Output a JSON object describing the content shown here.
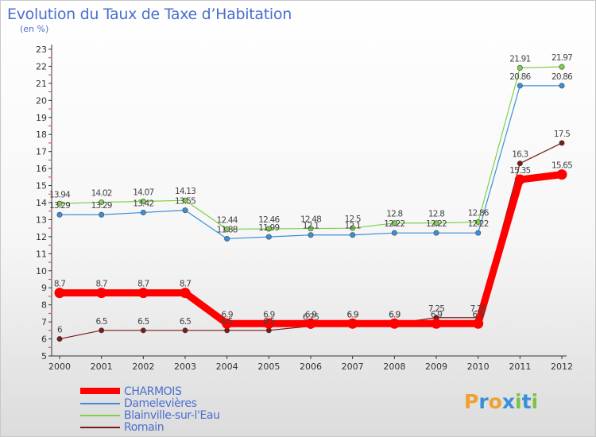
{
  "header": {
    "title": "Evolution du Taux de Taxe d’Habitation",
    "unit": "(en %)"
  },
  "logo": {
    "letters": [
      "P",
      "r",
      "o",
      "x",
      "i",
      "t",
      "i"
    ],
    "colors": [
      "#f0a030",
      "#3a8fd8",
      "#f0a030",
      "#3a8fd8",
      "#7cc242",
      "#3a8fd8",
      "#7cc242"
    ]
  },
  "chart_data": {
    "type": "line",
    "title": "Evolution du Taux de Taxe d’Habitation",
    "ylabel": "(en %)",
    "xlabel": "",
    "x": [
      "2000",
      "2001",
      "2002",
      "2003",
      "2004",
      "2005",
      "2006",
      "2007",
      "2008",
      "2009",
      "2010",
      "2011",
      "2012"
    ],
    "ylim": [
      5,
      23
    ],
    "yticks": [
      5,
      6,
      7,
      8,
      9,
      10,
      11,
      12,
      13,
      14,
      15,
      16,
      17,
      18,
      19,
      20,
      21,
      22,
      23
    ],
    "grid": false,
    "legend": "bottom-left",
    "series": [
      {
        "name": "CHARMOIS",
        "color": "#ff0000",
        "values": [
          8.7,
          8.7,
          8.7,
          8.7,
          6.9,
          6.9,
          6.9,
          6.9,
          6.9,
          6.9,
          6.9,
          15.35,
          15.65
        ],
        "labels": [
          "8.7",
          "8.7",
          "8.7",
          "8.7",
          "6.9",
          "6.9",
          "6.9",
          "6.9",
          "6.9",
          "6.9",
          "6.9",
          "15.35",
          "15.65"
        ]
      },
      {
        "name": "Damelevières",
        "color": "#3a8fd8",
        "values": [
          13.29,
          13.29,
          13.42,
          13.55,
          11.88,
          11.99,
          12.1,
          12.1,
          12.22,
          12.22,
          12.22,
          20.86,
          20.86
        ],
        "labels": [
          "13.29",
          "13.29",
          "13.42",
          "13.55",
          "11.88",
          "11.99",
          "12.1",
          "12.1",
          "12.22",
          "12.22",
          "12.22",
          "20.86",
          "20.86"
        ]
      },
      {
        "name": "Blainville-sur-l'Eau",
        "color": "#7fd04a",
        "values": [
          13.94,
          14.02,
          14.07,
          14.13,
          12.44,
          12.46,
          12.48,
          12.5,
          12.8,
          12.8,
          12.86,
          21.91,
          21.97
        ],
        "labels": [
          "13.94",
          "14.02",
          "14.07",
          "14.13",
          "12.44",
          "12.46",
          "12.48",
          "12.5",
          "12.8",
          "12.8",
          "12.86",
          "21.91",
          "21.97"
        ]
      },
      {
        "name": "Romain",
        "color": "#7a1a1a",
        "values": [
          6,
          6.5,
          6.5,
          6.5,
          6.5,
          6.5,
          6.75,
          6.9,
          6.9,
          7.25,
          7.25,
          16.3,
          17.5
        ],
        "labels": [
          "6",
          "6.5",
          "6.5",
          "6.5",
          "6.5",
          "6.5",
          "6.75",
          "6.9",
          "6.9",
          "7.25",
          "7.25",
          "16.3",
          "17.5"
        ]
      }
    ]
  }
}
